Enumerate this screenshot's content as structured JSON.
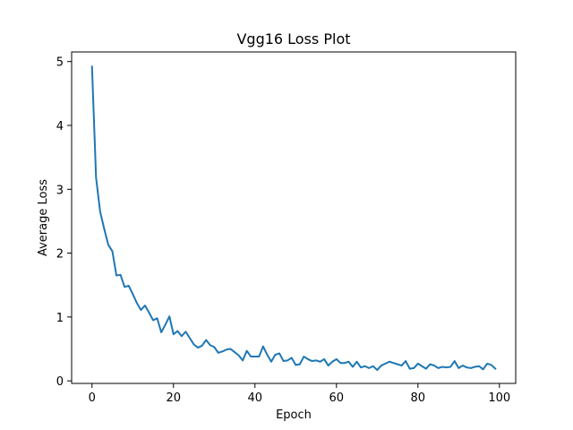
{
  "chart_data": {
    "type": "line",
    "title": "Vgg16 Loss Plot",
    "xlabel": "Epoch",
    "ylabel": "Average Loss",
    "xlim": [
      -5,
      104
    ],
    "ylim": [
      -0.04,
      5.15
    ],
    "xticks": [
      0,
      20,
      40,
      60,
      80,
      100
    ],
    "yticks": [
      0,
      1,
      2,
      3,
      4,
      5
    ],
    "grid": false,
    "legend": "none",
    "series": [
      {
        "color": "#1f77b4",
        "x": [
          0,
          1,
          2,
          3,
          4,
          5,
          6,
          7,
          8,
          9,
          10,
          11,
          12,
          13,
          14,
          15,
          16,
          17,
          18,
          19,
          20,
          21,
          22,
          23,
          24,
          25,
          26,
          27,
          28,
          29,
          30,
          31,
          32,
          33,
          34,
          35,
          36,
          37,
          38,
          39,
          40,
          41,
          42,
          43,
          44,
          45,
          46,
          47,
          48,
          49,
          50,
          51,
          52,
          53,
          54,
          55,
          56,
          57,
          58,
          59,
          60,
          61,
          62,
          63,
          64,
          65,
          66,
          67,
          68,
          69,
          70,
          71,
          72,
          73,
          74,
          75,
          76,
          77,
          78,
          79,
          80,
          81,
          82,
          83,
          84,
          85,
          86,
          87,
          88,
          89,
          90,
          91,
          92,
          93,
          94,
          95,
          96,
          97,
          98,
          99
        ],
        "values": [
          4.92,
          3.18,
          2.65,
          2.38,
          2.13,
          2.03,
          1.65,
          1.66,
          1.47,
          1.49,
          1.36,
          1.22,
          1.11,
          1.18,
          1.07,
          0.95,
          0.98,
          0.76,
          0.88,
          1.01,
          0.73,
          0.78,
          0.7,
          0.77,
          0.67,
          0.57,
          0.52,
          0.55,
          0.64,
          0.56,
          0.53,
          0.44,
          0.46,
          0.49,
          0.5,
          0.45,
          0.4,
          0.32,
          0.47,
          0.38,
          0.38,
          0.38,
          0.54,
          0.41,
          0.3,
          0.41,
          0.43,
          0.31,
          0.32,
          0.36,
          0.25,
          0.26,
          0.38,
          0.34,
          0.31,
          0.32,
          0.3,
          0.34,
          0.24,
          0.3,
          0.34,
          0.28,
          0.28,
          0.3,
          0.22,
          0.3,
          0.21,
          0.23,
          0.2,
          0.23,
          0.17,
          0.24,
          0.27,
          0.3,
          0.28,
          0.26,
          0.24,
          0.31,
          0.19,
          0.2,
          0.27,
          0.23,
          0.19,
          0.26,
          0.24,
          0.2,
          0.22,
          0.21,
          0.22,
          0.31,
          0.2,
          0.24,
          0.21,
          0.2,
          0.22,
          0.23,
          0.18,
          0.27,
          0.25,
          0.19
        ]
      }
    ]
  }
}
